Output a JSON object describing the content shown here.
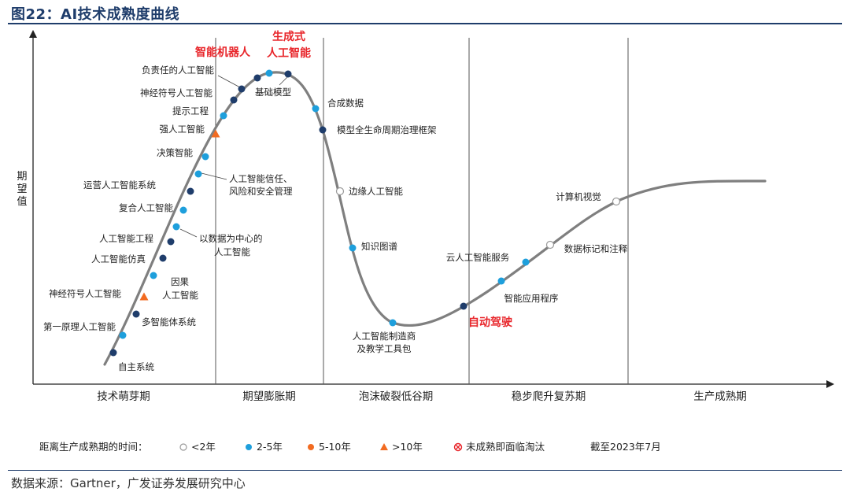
{
  "figure": {
    "title": "图22：AI技术成熟度曲线",
    "source": "数据来源：Gartner，广发证券发展研究中心",
    "as_of": "截至2023年7月"
  },
  "colors": {
    "curve": "#7f7f7f",
    "dark_blue": "#1f3d6b",
    "light_blue": "#1e9fdc",
    "orange": "#f26b21",
    "red": "#e8252a",
    "axis": "#222222",
    "divider": "#555555"
  },
  "chart_data": {
    "type": "line",
    "title": "",
    "xlabel": "",
    "ylabel": "期望值",
    "phases": [
      "技术萌芽期",
      "期望膨胀期",
      "泡沫破裂低谷期",
      "稳步爬升复苏期",
      "生产成熟期"
    ],
    "legend": {
      "prefix": "距离生产成熟期的时间：",
      "items": [
        {
          "key": "lt2",
          "label": "<2年",
          "marker": "hollow-circle"
        },
        {
          "key": "2to5",
          "label": "2-5年",
          "marker": "light-blue-circle"
        },
        {
          "key": "5to10",
          "label": "5-10年",
          "marker": "dark-blue-circle"
        },
        {
          "key": "gt10",
          "label": ">10年",
          "marker": "orange-triangle"
        },
        {
          "key": "obsolete",
          "label": "未成熟即面临淘汰",
          "marker": "crossed-circle"
        }
      ]
    },
    "points": [
      {
        "label": "自主系统",
        "category": "5to10",
        "highlight": false
      },
      {
        "label": "第一原理人工智能",
        "category": "2to5",
        "highlight": false
      },
      {
        "label": "多智能体系统",
        "category": "5to10",
        "highlight": false
      },
      {
        "label": "神经符号人工智能",
        "category": "gt10",
        "highlight": false
      },
      {
        "label": "因果人工智能",
        "category": "2to5",
        "highlight": false
      },
      {
        "label": "人工智能仿真",
        "category": "5to10",
        "highlight": false
      },
      {
        "label": "人工智能工程",
        "category": "5to10",
        "highlight": false
      },
      {
        "label": "以数据为中心的人工智能",
        "category": "2to5",
        "highlight": false
      },
      {
        "label": "复合人工智能",
        "category": "2to5",
        "highlight": false
      },
      {
        "label": "运营人工智能系统",
        "category": "5to10",
        "highlight": false
      },
      {
        "label": "人工智能信任、风险和安全管理",
        "category": "2to5",
        "highlight": false
      },
      {
        "label": "决策智能",
        "category": "2to5",
        "highlight": false
      },
      {
        "label": "强人工智能",
        "category": "gt10",
        "highlight": false
      },
      {
        "label": "提示工程",
        "category": "2to5",
        "highlight": false
      },
      {
        "label": "神经符号人工智能",
        "category": "5to10",
        "highlight": false
      },
      {
        "label": "负责任的人工智能",
        "category": "5to10",
        "highlight": false
      },
      {
        "label": "智能机器人",
        "category": "5to10",
        "highlight": true
      },
      {
        "label": "生成式人工智能",
        "category": "2to5",
        "highlight": true
      },
      {
        "label": "基础模型",
        "category": "5to10",
        "highlight": false
      },
      {
        "label": "合成数据",
        "category": "2to5",
        "highlight": false
      },
      {
        "label": "模型全生命周期治理框架",
        "category": "5to10",
        "highlight": false
      },
      {
        "label": "边缘人工智能",
        "category": "lt2",
        "highlight": false
      },
      {
        "label": "知识图谱",
        "category": "2to5",
        "highlight": false
      },
      {
        "label": "人工智能制造商及教学工具包",
        "category": "2to5",
        "highlight": false
      },
      {
        "label": "自动驾驶",
        "category": "5to10",
        "highlight": true
      },
      {
        "label": "智能应用程序",
        "category": "2to5",
        "highlight": false
      },
      {
        "label": "云人工智能服务",
        "category": "2to5",
        "highlight": false
      },
      {
        "label": "数据标记和注释",
        "category": "lt2",
        "highlight": false
      },
      {
        "label": "计算机视觉",
        "category": "lt2",
        "highlight": false
      }
    ]
  }
}
